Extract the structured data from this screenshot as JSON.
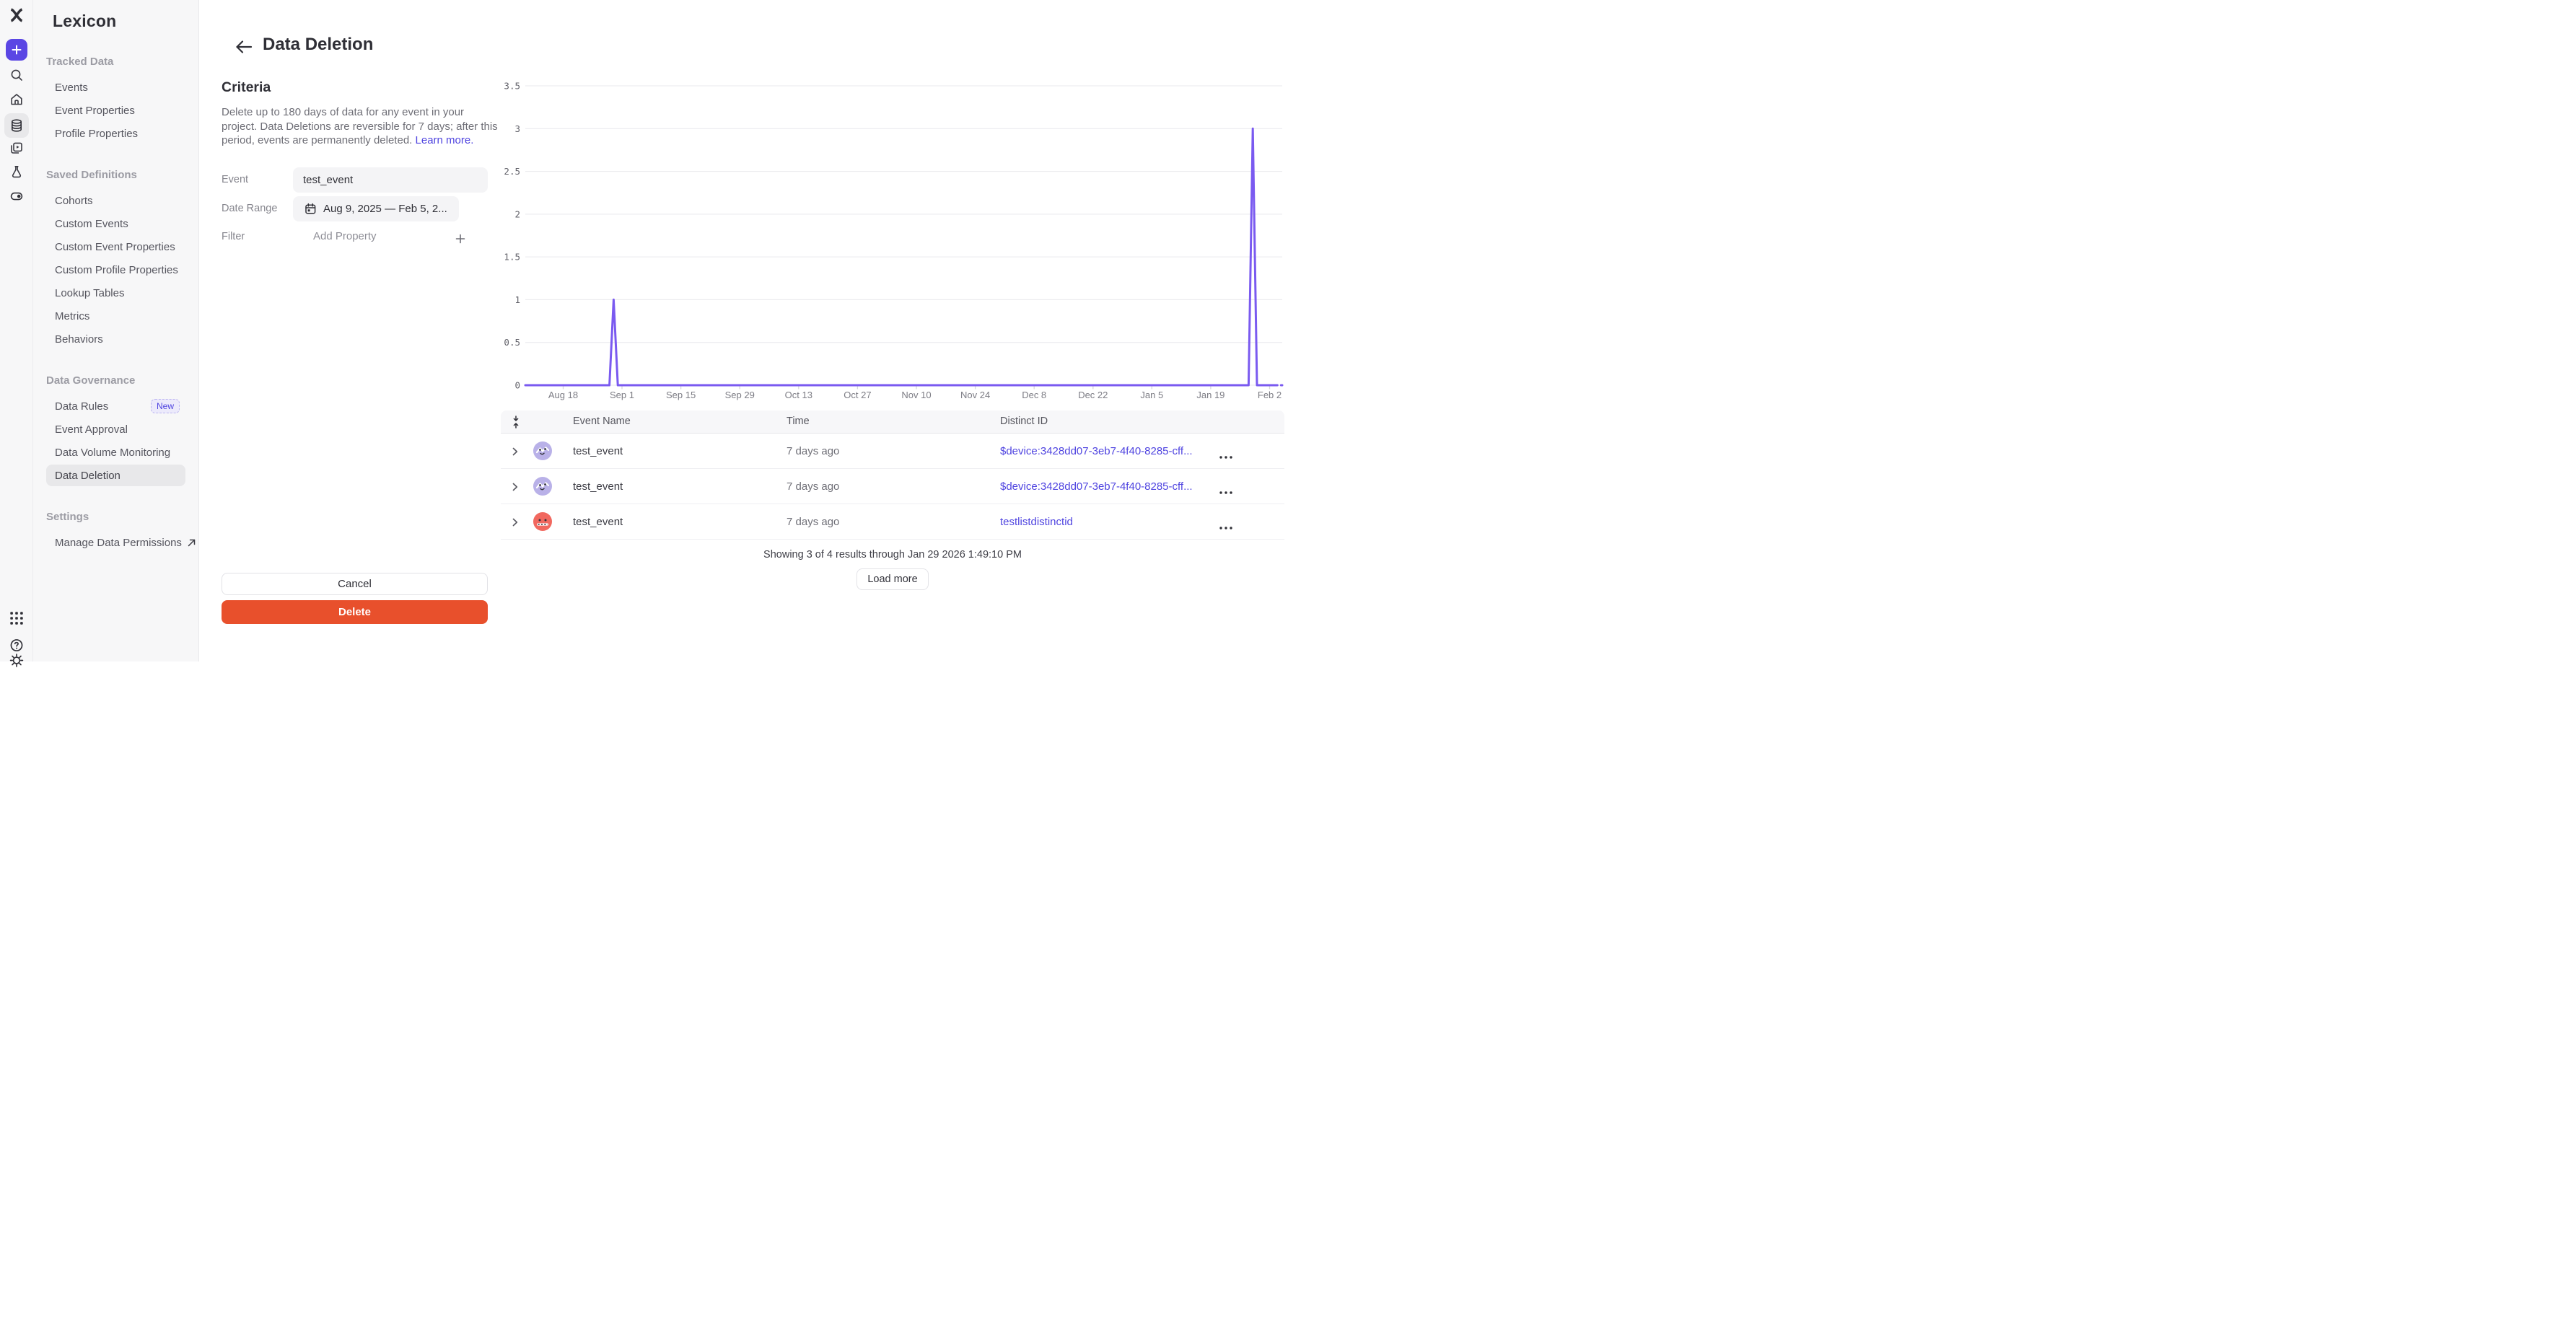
{
  "colors": {
    "accent": "#5A46E4",
    "link": "#4F44E0",
    "danger": "#E8502C",
    "chart_line": "#7A5AF0",
    "sidebar_bg": "#F7F7F8",
    "selected_bg": "#E8E8EA",
    "avatar_lavender": "#B9B1E8",
    "avatar_coral": "#F1685F"
  },
  "rail": {
    "icons": [
      "mixpanel-logo",
      "create-plus",
      "search",
      "home",
      "data-management",
      "boards",
      "experiments",
      "toggle",
      "apps-grid",
      "help",
      "settings-gear"
    ]
  },
  "sidebar": {
    "title": "Lexicon",
    "sections": [
      {
        "label": "Tracked Data",
        "items": [
          {
            "label": "Events"
          },
          {
            "label": "Event Properties"
          },
          {
            "label": "Profile Properties"
          }
        ]
      },
      {
        "label": "Saved Definitions",
        "items": [
          {
            "label": "Cohorts"
          },
          {
            "label": "Custom Events"
          },
          {
            "label": "Custom Event Properties"
          },
          {
            "label": "Custom Profile Properties"
          },
          {
            "label": "Lookup Tables"
          },
          {
            "label": "Metrics"
          },
          {
            "label": "Behaviors"
          }
        ]
      },
      {
        "label": "Data Governance",
        "items": [
          {
            "label": "Data Rules",
            "badge": "New"
          },
          {
            "label": "Event Approval"
          },
          {
            "label": "Data Volume Monitoring"
          },
          {
            "label": "Data Deletion",
            "selected": true
          }
        ]
      },
      {
        "label": "Settings",
        "items": [
          {
            "label": "Manage Data Permissions",
            "external": true
          }
        ]
      }
    ]
  },
  "header": {
    "title": "Data Deletion"
  },
  "criteria": {
    "title": "Criteria",
    "description": "Delete up to 180 days of data for any event in your project. Data Deletions are reversible for 7 days; after this period, events are permanently deleted.",
    "learn_more": "Learn more.",
    "fields": {
      "event_label": "Event",
      "event_value": "test_event",
      "date_range_label": "Date Range",
      "date_range_value": "Aug 9, 2025 — Feb 5, 2...",
      "filter_label": "Filter",
      "filter_placeholder": "Add Property"
    },
    "cancel_label": "Cancel",
    "delete_label": "Delete"
  },
  "chart_data": {
    "type": "line",
    "title": "",
    "xlabel": "",
    "ylabel": "",
    "x_start": "Aug 9, 2025",
    "x_end": "Feb 5, 2026",
    "total_days": 180,
    "x_tick_days": [
      9,
      23,
      37,
      51,
      65,
      79,
      93,
      107,
      121,
      135,
      149,
      163,
      177
    ],
    "x_tick_labels": [
      "Aug 18",
      "Sep 1",
      "Sep 15",
      "Sep 29",
      "Oct 13",
      "Oct 27",
      "Nov 10",
      "Nov 24",
      "Dec 8",
      "Dec 22",
      "Jan 5",
      "Jan 19",
      "Feb 2"
    ],
    "ylim": [
      0,
      3.5
    ],
    "y_ticks": [
      0,
      0.5,
      1,
      1.5,
      2,
      2.5,
      3,
      3.5
    ],
    "grid": "horizontal",
    "legend": "none",
    "series": [
      {
        "name": "test_event",
        "color": "#7A5AF0",
        "points_day_value": [
          [
            0,
            0
          ],
          [
            20,
            0
          ],
          [
            21,
            1
          ],
          [
            22,
            0
          ],
          [
            172,
            0
          ],
          [
            173,
            3
          ],
          [
            174,
            0
          ],
          [
            178,
            0
          ]
        ],
        "dashed_tail": [
          [
            178,
            0
          ],
          [
            180,
            0
          ]
        ]
      }
    ]
  },
  "table": {
    "columns": [
      "Event Name",
      "Time",
      "Distinct ID"
    ],
    "rows": [
      {
        "event": "test_event",
        "time": "7 days ago",
        "distinct_id": "$device:3428dd07-3eb7-4f40-8285-cff...",
        "avatar": "lavender"
      },
      {
        "event": "test_event",
        "time": "7 days ago",
        "distinct_id": "$device:3428dd07-3eb7-4f40-8285-cff...",
        "avatar": "lavender"
      },
      {
        "event": "test_event",
        "time": "7 days ago",
        "distinct_id": "testlistdistinctid",
        "avatar": "coral"
      }
    ],
    "footer": "Showing 3 of 4 results through Jan 29 2026 1:49:10 PM",
    "load_more": "Load more"
  }
}
